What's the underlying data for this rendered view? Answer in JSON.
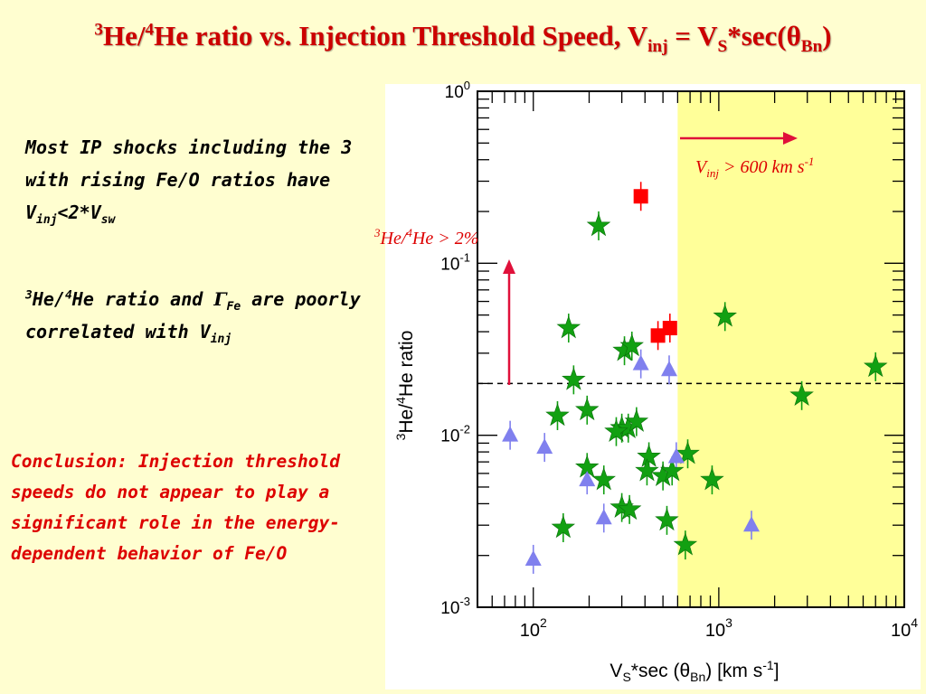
{
  "title": {
    "pre": "3",
    "part1": "He/",
    "sup2": "4",
    "part2": "He ratio vs. Injection Threshold Speed, V",
    "sub1": "inj",
    "part3": " = V",
    "sub2": "S",
    "part4": "*sec(θ",
    "sub3": "Bn",
    "part5": ")"
  },
  "notes": {
    "n1_text": "Most IP shocks including the 3 with rising Fe/O ratios have V",
    "n1_sub1": "inj",
    "n1_mid": "<2*V",
    "n1_sub2": "sw",
    "n2_sup1": "3",
    "n2_a": "He/",
    "n2_sup2": "4",
    "n2_b": "He ratio and ",
    "n2_gamma": "Γ",
    "n2_gsub": "Fe",
    "n2_c": " are poorly correlated with V",
    "n2_sub": "inj"
  },
  "conclusion": "Conclusion: Injection threshold speeds do not appear to play a significant role in the energy-dependent behavior of Fe/O",
  "colors": {
    "title": "#cc0000",
    "conclusion": "#dd0000",
    "annotation": "#dd0000",
    "arrow": "#e0103a",
    "shade": "#ffff99",
    "star": "#12a012",
    "triangle": "#8080ee",
    "square": "#ff0000"
  },
  "chart_data": {
    "type": "scatter",
    "x_scale": "log",
    "y_scale": "log",
    "xlim": [
      50,
      10000
    ],
    "ylim": [
      0.001,
      1
    ],
    "x_ticks": [
      {
        "value": 100,
        "base": "10",
        "exp": "2"
      },
      {
        "value": 1000,
        "base": "10",
        "exp": "3"
      },
      {
        "value": 10000,
        "base": "10",
        "exp": "4"
      }
    ],
    "y_ticks": [
      {
        "value": 0.001,
        "base": "10",
        "exp": "-3"
      },
      {
        "value": 0.01,
        "base": "10",
        "exp": "-2"
      },
      {
        "value": 0.1,
        "base": "10",
        "exp": "-1"
      },
      {
        "value": 1,
        "base": "10",
        "exp": "0"
      }
    ],
    "xlabel": {
      "a": "V",
      "sub1": "S",
      "b": "*sec (θ",
      "sub2": "Bn",
      "c": ") [km s",
      "sup": "-1",
      "d": "]"
    },
    "ylabel": {
      "sup1": "3",
      "a": "He/",
      "sup2": "4",
      "b": "He ratio"
    },
    "shaded_region": {
      "x_from": 600,
      "x_to": 10000
    },
    "threshold_line": {
      "y": 0.02
    },
    "annotations": {
      "vinj_label": {
        "a": "V",
        "sub": "inj",
        "b": " > 600 km s",
        "sup": "-1"
      },
      "ratio_label": {
        "sup1": "3",
        "a": "He/",
        "sup2": "4",
        "b": "He > 2%"
      }
    },
    "series": [
      {
        "marker": "star",
        "points": [
          [
            225,
            0.165
          ],
          [
            155,
            0.042
          ],
          [
            165,
            0.021
          ],
          [
            310,
            0.031
          ],
          [
            340,
            0.033
          ],
          [
            1080,
            0.049
          ],
          [
            7000,
            0.025
          ],
          [
            2800,
            0.017
          ],
          [
            135,
            0.013
          ],
          [
            195,
            0.014
          ],
          [
            300,
            0.011
          ],
          [
            325,
            0.011
          ],
          [
            360,
            0.012
          ],
          [
            280,
            0.0105
          ],
          [
            420,
            0.0075
          ],
          [
            680,
            0.0078
          ],
          [
            195,
            0.0065
          ],
          [
            240,
            0.0055
          ],
          [
            410,
            0.0062
          ],
          [
            500,
            0.0058
          ],
          [
            560,
            0.0062
          ],
          [
            920,
            0.0055
          ],
          [
            300,
            0.0038
          ],
          [
            330,
            0.0037
          ],
          [
            525,
            0.0032
          ],
          [
            145,
            0.0029
          ],
          [
            660,
            0.0023
          ]
        ]
      },
      {
        "marker": "triangle",
        "points": [
          [
            75,
            0.01
          ],
          [
            115,
            0.0085
          ],
          [
            100,
            0.0019
          ],
          [
            195,
            0.0055
          ],
          [
            240,
            0.0033
          ],
          [
            380,
            0.026
          ],
          [
            540,
            0.024
          ],
          [
            590,
            0.0075
          ],
          [
            1500,
            0.003
          ]
        ]
      },
      {
        "marker": "square",
        "points": [
          [
            380,
            0.245
          ],
          [
            470,
            0.038
          ],
          [
            545,
            0.042
          ]
        ]
      }
    ]
  }
}
